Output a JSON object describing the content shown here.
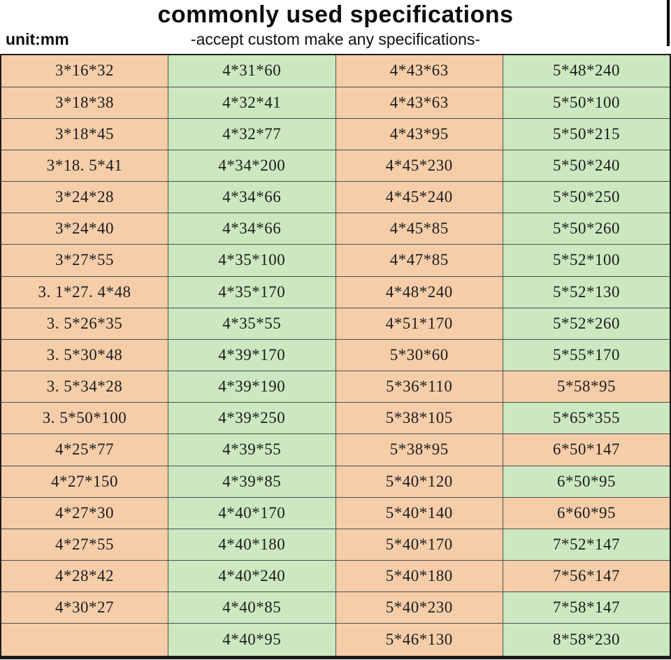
{
  "header": {
    "title": "commonly used specifications",
    "subtitle": "-accept custom make any specifications-",
    "unit_label": "unit:mm"
  },
  "colors": {
    "cell_peach": "#f5cda9",
    "cell_green": "#cbe8c0",
    "grid_line": "#4f4f4f",
    "outer_border": "#1c1c1c",
    "text": "#1c1c1c",
    "background": "#ffffff"
  },
  "table": {
    "columns": 4,
    "column_colors": [
      "cell_peach",
      "cell_green",
      "cell_peach",
      "cell_green"
    ],
    "cell_overrides": [
      {
        "row": 10,
        "col": 3,
        "color": "cell_peach"
      },
      {
        "row": 12,
        "col": 3,
        "color": "cell_peach"
      },
      {
        "row": 14,
        "col": 3,
        "color": "cell_peach"
      },
      {
        "row": 16,
        "col": 3,
        "color": "cell_peach"
      }
    ],
    "rows": [
      [
        "3*16*32",
        "4*31*60",
        "4*43*63",
        "5*48*240"
      ],
      [
        "3*18*38",
        "4*32*41",
        "4*43*63",
        "5*50*100"
      ],
      [
        "3*18*45",
        "4*32*77",
        "4*43*95",
        "5*50*215"
      ],
      [
        "3*18. 5*41",
        "4*34*200",
        "4*45*230",
        "5*50*240"
      ],
      [
        "3*24*28",
        "4*34*66",
        "4*45*240",
        "5*50*250"
      ],
      [
        "3*24*40",
        "4*34*66",
        "4*45*85",
        "5*50*260"
      ],
      [
        "3*27*55",
        "4*35*100",
        "4*47*85",
        "5*52*100"
      ],
      [
        "3. 1*27. 4*48",
        "4*35*170",
        "4*48*240",
        "5*52*130"
      ],
      [
        "3. 5*26*35",
        "4*35*55",
        "4*51*170",
        "5*52*260"
      ],
      [
        "3. 5*30*48",
        "4*39*170",
        "5*30*60",
        "5*55*170"
      ],
      [
        "3. 5*34*28",
        "4*39*190",
        "5*36*110",
        "5*58*95"
      ],
      [
        "3. 5*50*100",
        "4*39*250",
        "5*38*105",
        "5*65*355"
      ],
      [
        "4*25*77",
        "4*39*55",
        "5*38*95",
        "6*50*147"
      ],
      [
        "4*27*150",
        "4*39*85",
        "5*40*120",
        "6*50*95"
      ],
      [
        "4*27*30",
        "4*40*170",
        "5*40*140",
        "6*60*95"
      ],
      [
        "4*27*55",
        "4*40*180",
        "5*40*170",
        "7*52*147"
      ],
      [
        "4*28*42",
        "4*40*240",
        "5*40*180",
        "7*56*147"
      ],
      [
        "4*30*27",
        "4*40*85",
        "5*40*230",
        "7*58*147"
      ],
      [
        "",
        "4*40*95",
        "5*46*130",
        "8*58*230"
      ]
    ]
  }
}
